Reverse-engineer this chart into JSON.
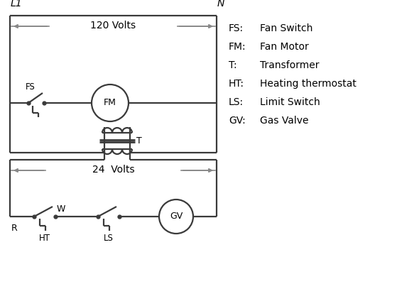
{
  "bg_color": "#ffffff",
  "line_color": "#3a3a3a",
  "arrow_color": "#888888",
  "text_color": "#000000",
  "figsize": [
    5.9,
    4.0
  ],
  "dpi": 100,
  "legend_items": [
    [
      "FS:",
      "Fan Switch"
    ],
    [
      "FM:",
      "Fan Motor"
    ],
    [
      "T:",
      "  Transformer"
    ],
    [
      "HT:",
      " Heating thermostat"
    ],
    [
      "LS:",
      "  Limit Switch"
    ],
    [
      "GV:",
      "  Gas Valve"
    ]
  ],
  "L1_label": "L1",
  "N_label": "N",
  "volts120_label": "120 Volts",
  "volts24_label": "24  Volts",
  "T_label": "T",
  "R_label": "R",
  "W_label": "W",
  "FS_label": "FS",
  "HT_label": "HT",
  "LS_label": "LS"
}
